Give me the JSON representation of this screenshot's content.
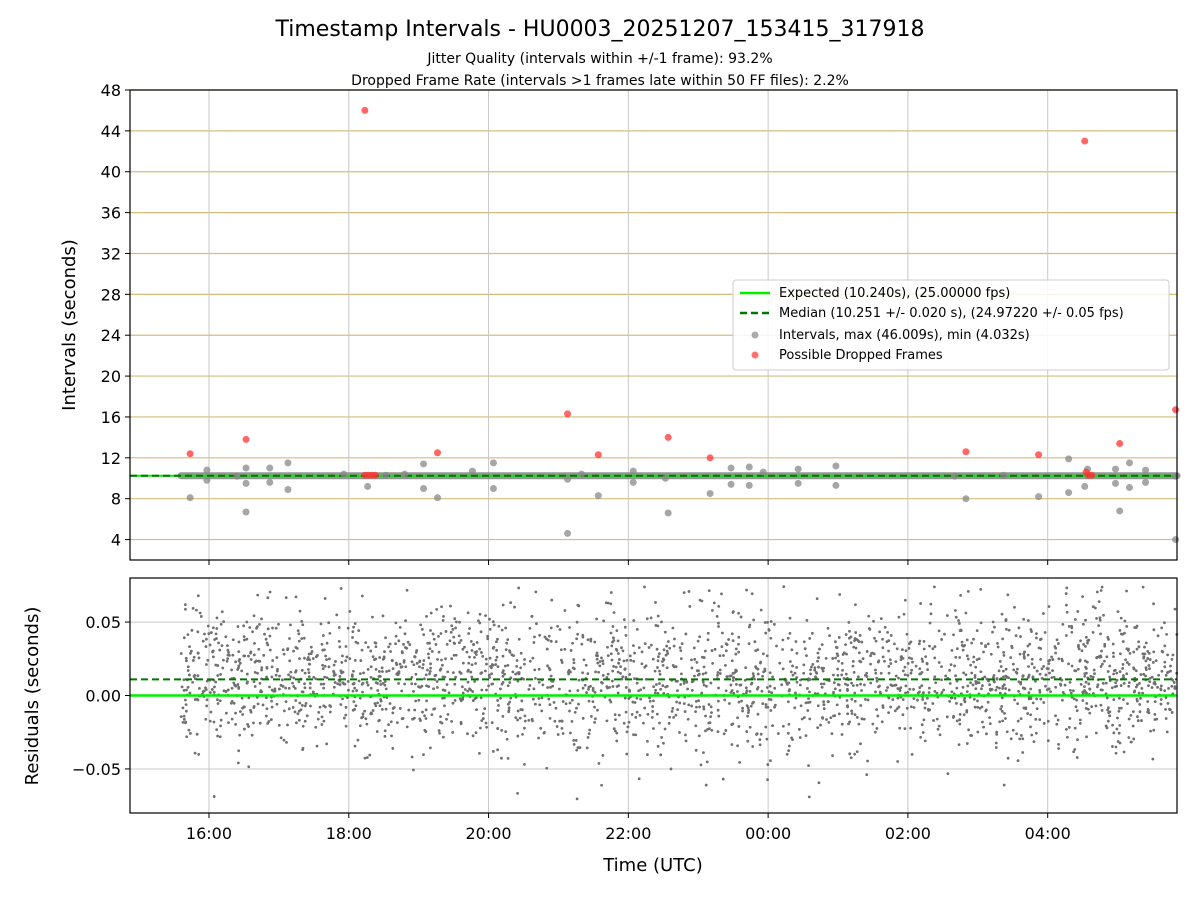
{
  "chart_data": [
    {
      "type": "scatter",
      "title": "Timestamp Intervals - HU0003_20251207_153415_317918",
      "subtitle_lines": [
        "Jitter Quality (intervals within +/-1 frame): 93.2%",
        "Dropped Frame Rate (intervals >1 frames late within 50 FF files): 2.2%"
      ],
      "ylabel": "Intervals (seconds)",
      "xlabel": "",
      "x_tick_labels": [
        "16:00",
        "18:00",
        "20:00",
        "22:00",
        "00:00",
        "02:00",
        "04:00"
      ],
      "x_tick_hours": [
        16,
        18,
        20,
        22,
        24,
        26,
        28
      ],
      "xlim_hours": [
        14.87,
        29.85
      ],
      "ylim": [
        2,
        48
      ],
      "y_ticks": [
        4,
        8,
        12,
        16,
        20,
        24,
        28,
        32,
        36,
        40,
        44,
        48
      ],
      "grid": true,
      "legend_position": "center-right",
      "legend": [
        {
          "label": "Expected (10.240s), (25.00000 fps)",
          "style": "solid-line",
          "color": "#00ee00"
        },
        {
          "label": "Median (10.251 +/- 0.020 s), (24.97220 +/- 0.05 fps)",
          "style": "dashed-line",
          "color": "#007700"
        },
        {
          "label": "Intervals, max (46.009s), min (4.032s)",
          "style": "marker",
          "color": "#888888"
        },
        {
          "label": "Possible Dropped Frames",
          "style": "marker",
          "color": "#ff3333"
        }
      ],
      "expected": 10.24,
      "median": 10.251,
      "series": [
        {
          "name": "Intervals, max (46.009s), min (4.032s)",
          "color": "#888888",
          "points": [
            [
              15.73,
              8.1
            ],
            [
              15.97,
              10.8
            ],
            [
              15.97,
              9.8
            ],
            [
              16.4,
              10.2
            ],
            [
              16.53,
              11.0
            ],
            [
              16.53,
              9.5
            ],
            [
              16.53,
              6.7
            ],
            [
              16.87,
              11.0
            ],
            [
              16.87,
              9.6
            ],
            [
              17.13,
              11.5
            ],
            [
              17.13,
              8.9
            ],
            [
              17.93,
              10.4
            ],
            [
              18.27,
              9.2
            ],
            [
              18.53,
              10.3
            ],
            [
              18.8,
              10.4
            ],
            [
              19.07,
              11.4
            ],
            [
              19.07,
              9.0
            ],
            [
              19.27,
              8.1
            ],
            [
              19.77,
              10.7
            ],
            [
              20.07,
              11.5
            ],
            [
              20.07,
              9.0
            ],
            [
              21.13,
              9.9
            ],
            [
              21.13,
              4.6
            ],
            [
              21.33,
              10.4
            ],
            [
              21.57,
              8.3
            ],
            [
              22.07,
              10.7
            ],
            [
              22.07,
              9.6
            ],
            [
              22.53,
              10.0
            ],
            [
              22.57,
              6.6
            ],
            [
              23.17,
              8.5
            ],
            [
              23.47,
              11.0
            ],
            [
              23.47,
              9.4
            ],
            [
              23.73,
              11.1
            ],
            [
              23.73,
              9.3
            ],
            [
              23.93,
              10.6
            ],
            [
              24.43,
              10.9
            ],
            [
              24.43,
              9.5
            ],
            [
              24.97,
              11.2
            ],
            [
              24.97,
              9.3
            ],
            [
              26.67,
              10.2
            ],
            [
              26.83,
              8.0
            ],
            [
              27.37,
              10.3
            ],
            [
              27.87,
              8.2
            ],
            [
              28.3,
              11.9
            ],
            [
              28.3,
              8.6
            ],
            [
              28.53,
              9.2
            ],
            [
              28.57,
              10.9
            ],
            [
              28.97,
              10.9
            ],
            [
              28.97,
              9.5
            ],
            [
              29.03,
              6.8
            ],
            [
              29.17,
              11.5
            ],
            [
              29.17,
              9.1
            ],
            [
              29.4,
              10.8
            ],
            [
              29.4,
              9.6
            ],
            [
              29.83,
              10.2
            ],
            [
              29.83,
              4.0
            ]
          ]
        },
        {
          "name": "Possible Dropped Frames",
          "color": "#ff3333",
          "points": [
            [
              15.73,
              12.4
            ],
            [
              16.53,
              13.8
            ],
            [
              18.23,
              46.0
            ],
            [
              18.23,
              10.3
            ],
            [
              18.28,
              10.3
            ],
            [
              18.33,
              10.3
            ],
            [
              18.38,
              10.3
            ],
            [
              19.27,
              12.5
            ],
            [
              21.13,
              16.3
            ],
            [
              21.57,
              12.3
            ],
            [
              22.57,
              14.0
            ],
            [
              23.17,
              12.0
            ],
            [
              26.83,
              12.6
            ],
            [
              27.87,
              12.3
            ],
            [
              28.53,
              43.0
            ],
            [
              28.55,
              10.6
            ],
            [
              28.58,
              10.3
            ],
            [
              28.63,
              10.3
            ],
            [
              29.03,
              13.4
            ],
            [
              29.83,
              16.7
            ]
          ]
        }
      ]
    },
    {
      "type": "scatter",
      "title": "",
      "xlabel": "Time (UTC)",
      "ylabel": "Residuals (seconds)",
      "ylim": [
        -0.08,
        0.08
      ],
      "y_ticks": [
        -0.05,
        0.0,
        0.05
      ],
      "y_tick_labels": [
        "−0.05",
        "0.00",
        "0.05"
      ],
      "x_tick_labels": [
        "16:00",
        "18:00",
        "20:00",
        "22:00",
        "00:00",
        "02:00",
        "04:00"
      ],
      "grid": true,
      "expected_residual": 0.0,
      "median_residual": 0.011,
      "point_count": 2600,
      "residual_spread": {
        "center": 0.011,
        "stdev": 0.024,
        "min": -0.075,
        "max": 0.075
      },
      "xrange_hours": [
        15.6,
        29.85
      ],
      "series": [
        {
          "name": "",
          "color": "#707070"
        }
      ]
    }
  ]
}
